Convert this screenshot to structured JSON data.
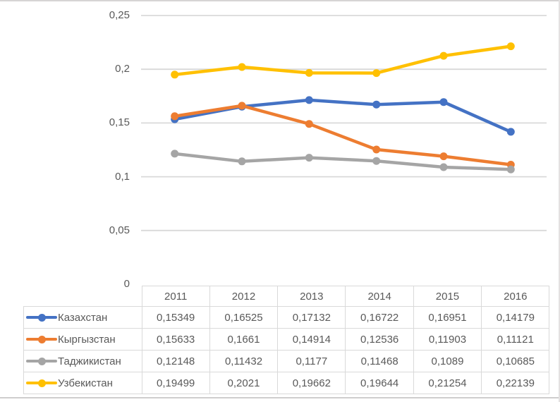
{
  "chart_data": {
    "type": "line",
    "title": "",
    "xlabel": "",
    "ylabel": "",
    "categories": [
      "2011",
      "2012",
      "2013",
      "2014",
      "2015",
      "2016"
    ],
    "series": [
      {
        "name": "Казахстан",
        "color": "#4472C4",
        "values": [
          0.15349,
          0.16525,
          0.17132,
          0.16722,
          0.16951,
          0.14179
        ],
        "labels": [
          "0,15349",
          "0,16525",
          "0,17132",
          "0,16722",
          "0,16951",
          "0,14179"
        ]
      },
      {
        "name": "Кыргызстан",
        "color": "#ED7D31",
        "values": [
          0.15633,
          0.1661,
          0.14914,
          0.12536,
          0.11903,
          0.11121
        ],
        "labels": [
          "0,15633",
          "0,1661",
          "0,14914",
          "0,12536",
          "0,11903",
          "0,11121"
        ]
      },
      {
        "name": "Таджикистан",
        "color": "#A5A5A5",
        "values": [
          0.12148,
          0.11432,
          0.1177,
          0.11468,
          0.1089,
          0.10685
        ],
        "labels": [
          "0,12148",
          "0,11432",
          "0,1177",
          "0,11468",
          "0,1089",
          "0,10685"
        ]
      },
      {
        "name": "Узбекистан",
        "color": "#FFC000",
        "values": [
          0.19499,
          0.2021,
          0.19662,
          0.19644,
          0.21254,
          0.22139
        ],
        "labels": [
          "0,19499",
          "0,2021",
          "0,19662",
          "0,19644",
          "0,21254",
          "0,22139"
        ]
      }
    ],
    "y_ticks": [
      {
        "v": 0.25,
        "label": "0,25"
      },
      {
        "v": 0.2,
        "label": "0,2"
      },
      {
        "v": 0.15,
        "label": "0,15"
      },
      {
        "v": 0.1,
        "label": "0,1"
      },
      {
        "v": 0.05,
        "label": "0,05"
      },
      {
        "v": 0,
        "label": "0"
      }
    ],
    "ylim": [
      0,
      0.25
    ],
    "grid": true,
    "gridline_color": "#D9D9D9",
    "axis_text_color": "#595959",
    "legend_position": "table-left",
    "data_table_shown": true
  }
}
